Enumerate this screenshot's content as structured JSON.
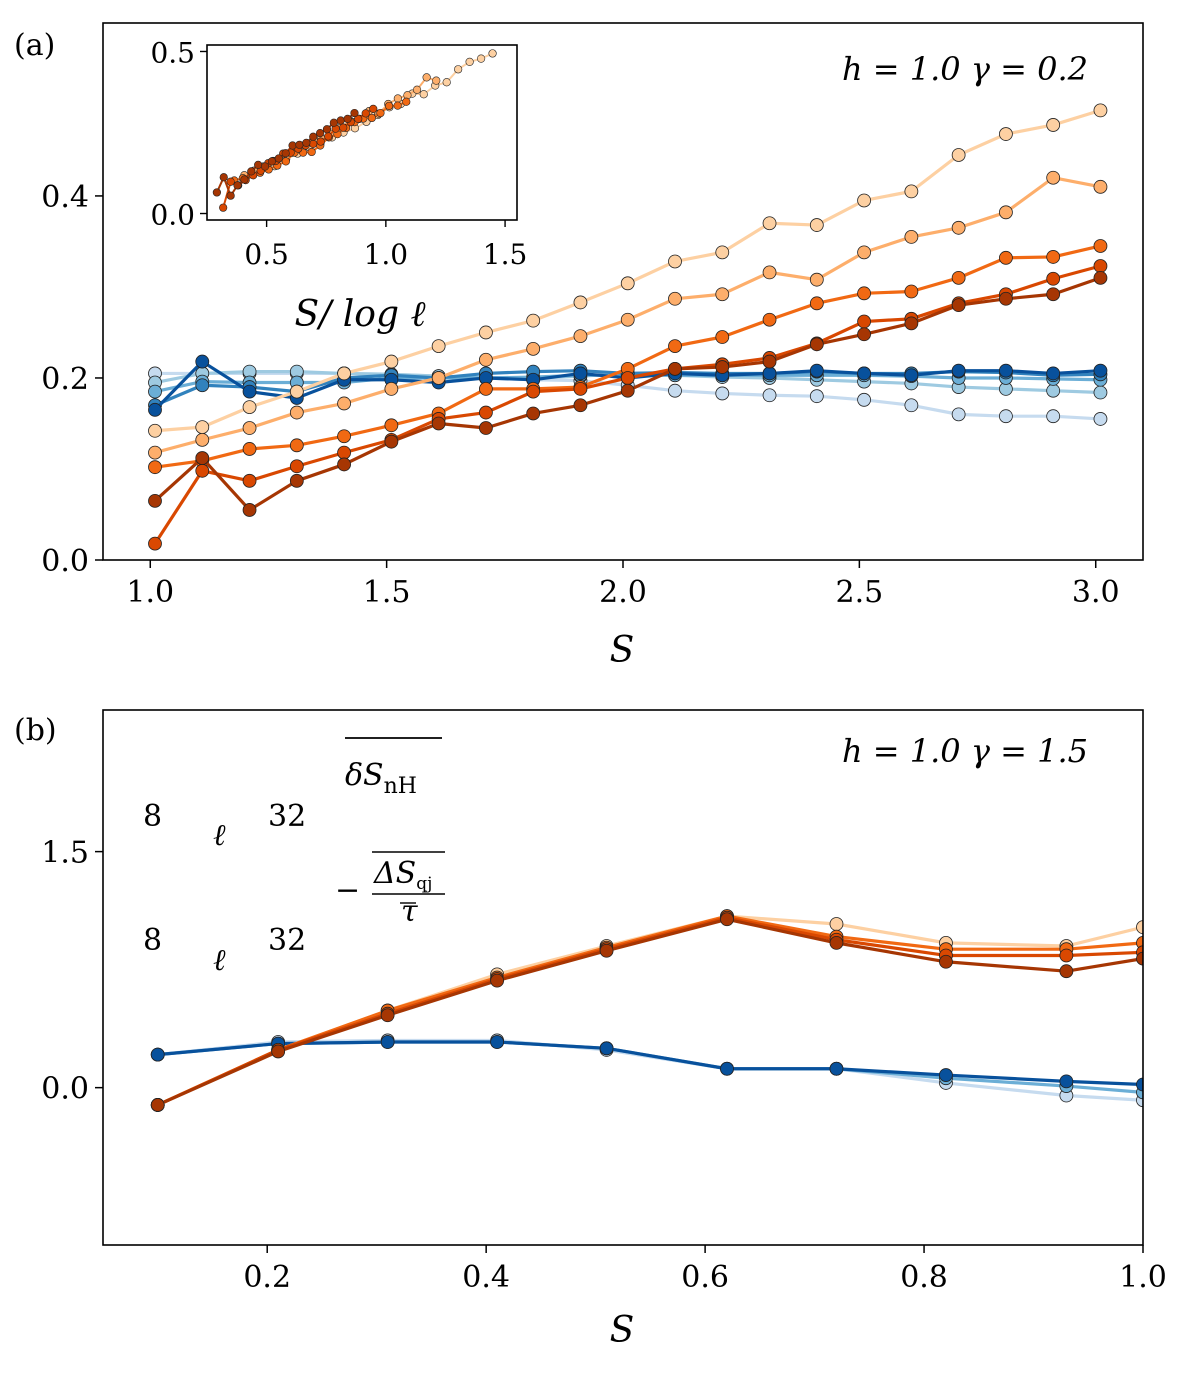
{
  "chart_data": [
    {
      "panel": "a",
      "panel_label": "(a)",
      "type": "line",
      "annotation": "h = 1.0    γ = 0.2",
      "xlabel": "S",
      "ylabel": "",
      "xlim": [
        0.9,
        3.1
      ],
      "ylim": [
        0.0,
        0.59
      ],
      "xticks": [
        1.0,
        1.5,
        2.0,
        2.5,
        3.0
      ],
      "xtick_labels": [
        "1.0",
        "1.5",
        "2.0",
        "2.5",
        "3.0"
      ],
      "yticks": [
        0.0,
        0.2,
        0.4
      ],
      "ytick_labels": [
        "0.0",
        "0.2",
        "0.4"
      ],
      "x": [
        1.01,
        1.11,
        1.21,
        1.31,
        1.41,
        1.51,
        1.61,
        1.71,
        1.81,
        1.91,
        2.01,
        2.11,
        2.21,
        2.31,
        2.41,
        2.51,
        2.61,
        2.71,
        2.81,
        2.91,
        3.01
      ],
      "series": [
        {
          "name": "δS_nH ℓ=8",
          "group": "blue",
          "shade": 0,
          "values": [
            0.205,
            0.205,
            0.205,
            0.205,
            0.205,
            0.204,
            0.202,
            0.2,
            0.198,
            0.197,
            0.192,
            0.186,
            0.183,
            0.181,
            0.18,
            0.176,
            0.17,
            0.16,
            0.158,
            0.158,
            0.155
          ]
        },
        {
          "name": "δS_nH ℓ=12",
          "group": "blue",
          "shade": 1,
          "values": [
            0.195,
            0.205,
            0.207,
            0.207,
            0.205,
            0.204,
            0.202,
            0.2,
            0.2,
            0.202,
            0.205,
            0.203,
            0.201,
            0.2,
            0.198,
            0.196,
            0.194,
            0.19,
            0.188,
            0.186,
            0.184
          ]
        },
        {
          "name": "δS_nH ℓ=16",
          "group": "blue",
          "shade": 2,
          "values": [
            0.185,
            0.196,
            0.195,
            0.195,
            0.195,
            0.2,
            0.2,
            0.2,
            0.201,
            0.203,
            0.203,
            0.203,
            0.203,
            0.203,
            0.203,
            0.203,
            0.202,
            0.2,
            0.2,
            0.199,
            0.198
          ]
        },
        {
          "name": "δS_nH ℓ=24",
          "group": "blue",
          "shade": 3,
          "values": [
            0.17,
            0.192,
            0.19,
            0.185,
            0.2,
            0.203,
            0.2,
            0.205,
            0.207,
            0.208,
            0.205,
            0.206,
            0.205,
            0.205,
            0.207,
            0.205,
            0.205,
            0.207,
            0.206,
            0.203,
            0.204
          ]
        },
        {
          "name": "δS_nH ℓ=32",
          "group": "blue",
          "shade": 4,
          "values": [
            0.165,
            0.218,
            0.185,
            0.178,
            0.198,
            0.198,
            0.195,
            0.2,
            0.198,
            0.205,
            0.2,
            0.205,
            0.203,
            0.205,
            0.208,
            0.205,
            0.203,
            0.208,
            0.208,
            0.205,
            0.208
          ]
        },
        {
          "name": "-ΔS_qj/τ ℓ=8",
          "group": "orange",
          "shade": 0,
          "values": [
            0.142,
            0.146,
            0.168,
            0.185,
            0.205,
            0.218,
            0.235,
            0.25,
            0.263,
            0.283,
            0.304,
            0.328,
            0.338,
            0.37,
            0.368,
            0.395,
            0.405,
            0.445,
            0.468,
            0.478,
            0.494
          ]
        },
        {
          "name": "-ΔS_qj/τ ℓ=12",
          "group": "orange",
          "shade": 1,
          "values": [
            0.118,
            0.132,
            0.145,
            0.162,
            0.172,
            0.188,
            0.2,
            0.22,
            0.232,
            0.246,
            0.264,
            0.287,
            0.292,
            0.316,
            0.308,
            0.338,
            0.355,
            0.365,
            0.382,
            0.42,
            0.41
          ]
        },
        {
          "name": "-ΔS_qj/τ ℓ=16",
          "group": "orange",
          "shade": 2,
          "values": [
            0.102,
            0.109,
            0.122,
            0.126,
            0.136,
            0.148,
            0.161,
            0.188,
            0.188,
            0.19,
            0.21,
            0.235,
            0.245,
            0.264,
            0.282,
            0.293,
            0.295,
            0.31,
            0.332,
            0.333,
            0.345
          ]
        },
        {
          "name": "-ΔS_qj/τ ℓ=24",
          "group": "orange",
          "shade": 3,
          "values": [
            0.018,
            0.098,
            0.087,
            0.103,
            0.118,
            0.132,
            0.155,
            0.162,
            0.185,
            0.188,
            0.2,
            0.21,
            0.215,
            0.222,
            0.238,
            0.262,
            0.265,
            0.282,
            0.292,
            0.309,
            0.323
          ]
        },
        {
          "name": "-ΔS_qj/τ ℓ=32",
          "group": "orange",
          "shade": 4,
          "values": [
            0.065,
            0.112,
            0.055,
            0.087,
            0.105,
            0.13,
            0.15,
            0.145,
            0.161,
            0.17,
            0.186,
            0.21,
            0.212,
            0.218,
            0.237,
            0.248,
            0.26,
            0.28,
            0.287,
            0.292,
            0.31
          ]
        }
      ],
      "inset": {
        "type": "scatter",
        "xlabel": "S/ log ℓ",
        "xlim": [
          0.25,
          1.55
        ],
        "ylim": [
          -0.02,
          0.52
        ],
        "xticks": [
          0.5,
          1.0,
          1.5
        ],
        "xtick_labels": [
          "0.5",
          "1.0",
          "1.5"
        ],
        "yticks": [
          0.0,
          0.5
        ],
        "ytick_labels": [
          "0.0",
          "0.5"
        ]
      }
    },
    {
      "panel": "b",
      "panel_label": "(b)",
      "type": "line",
      "annotation": "h = 1.0    γ = 1.5",
      "xlabel": "S",
      "ylabel": "",
      "xlim": [
        0.05,
        1.0
      ],
      "ylim": [
        -1.0,
        2.4
      ],
      "xticks": [
        0.2,
        0.4,
        0.6,
        0.8,
        1.0
      ],
      "xtick_labels": [
        "0.2",
        "0.4",
        "0.6",
        "0.8",
        "1.0"
      ],
      "yticks": [
        0.0,
        1.5
      ],
      "ytick_labels": [
        "0.0",
        "1.5"
      ],
      "x": [
        0.1,
        0.21,
        0.31,
        0.41,
        0.51,
        0.62,
        0.72,
        0.82,
        0.93,
        1.0
      ],
      "series": [
        {
          "name": "δS_nH ℓ=8",
          "group": "blue",
          "shade": 0,
          "values": [
            0.21,
            0.29,
            0.3,
            0.3,
            0.24,
            0.12,
            0.12,
            0.03,
            -0.05,
            -0.08
          ]
        },
        {
          "name": "δS_nH ℓ=16",
          "group": "blue",
          "shade": 2,
          "values": [
            0.21,
            0.28,
            0.29,
            0.29,
            0.25,
            0.12,
            0.12,
            0.06,
            0.01,
            -0.03
          ]
        },
        {
          "name": "δS_nH ℓ=32",
          "group": "blue",
          "shade": 4,
          "values": [
            0.21,
            0.28,
            0.29,
            0.29,
            0.25,
            0.12,
            0.12,
            0.08,
            0.04,
            0.02
          ]
        },
        {
          "name": "-ΔS_qj/τ ℓ=8",
          "group": "orange",
          "shade": 0,
          "values": [
            -0.11,
            0.24,
            0.49,
            0.72,
            0.9,
            1.09,
            1.04,
            0.92,
            0.9,
            1.02
          ]
        },
        {
          "name": "-ΔS_qj/τ ℓ=16",
          "group": "orange",
          "shade": 2,
          "values": [
            -0.11,
            0.24,
            0.49,
            0.7,
            0.89,
            1.09,
            0.96,
            0.88,
            0.88,
            0.92
          ]
        },
        {
          "name": "-ΔS_qj/τ ℓ=24",
          "group": "orange",
          "shade": 3,
          "values": [
            -0.11,
            0.24,
            0.47,
            0.69,
            0.88,
            1.08,
            0.94,
            0.84,
            0.84,
            0.86
          ]
        },
        {
          "name": "-ΔS_qj/τ ℓ=32",
          "group": "orange",
          "shade": 4,
          "values": [
            -0.11,
            0.23,
            0.46,
            0.68,
            0.87,
            1.07,
            0.92,
            0.8,
            0.74,
            0.82
          ]
        }
      ],
      "legend": {
        "placement": "top-left",
        "entries": [
          {
            "label": "δS_nH (overlined)",
            "cmap": "Blues",
            "low": "8",
            "high": "32",
            "var": "ℓ"
          },
          {
            "label": "−ΔS_qj/τ (overlined)",
            "cmap": "Oranges",
            "low": "8",
            "high": "32",
            "var": "ℓ"
          }
        ]
      }
    }
  ],
  "colors": {
    "blue": [
      "#c6dbef",
      "#9ecae1",
      "#6baed6",
      "#3182bd",
      "#08519c"
    ],
    "orange": [
      "#fdd0a2",
      "#fdae6b",
      "#f16913",
      "#d94801",
      "#a63603"
    ]
  }
}
